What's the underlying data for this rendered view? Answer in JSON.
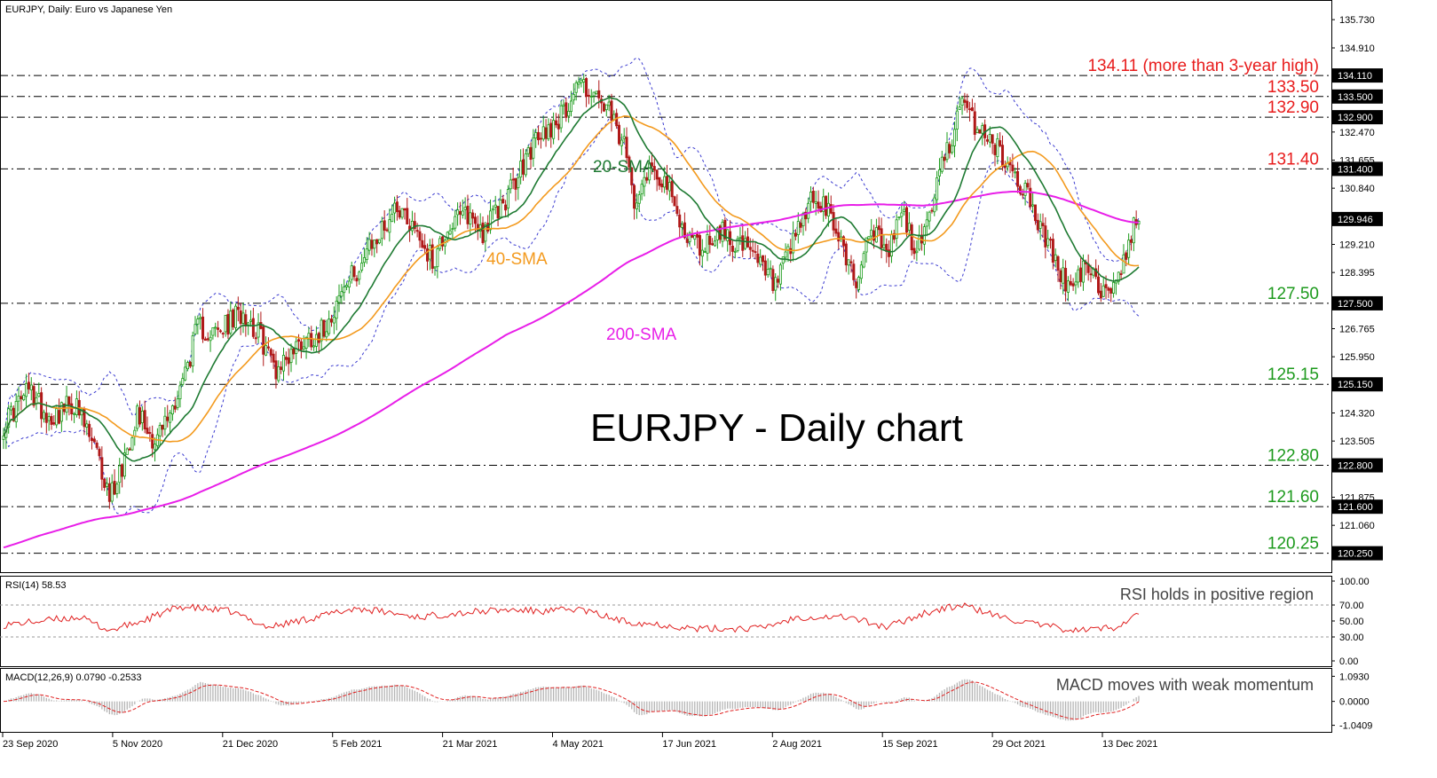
{
  "header": {
    "main_info": "EURJPY, Daily:  Euro vs Japanese Yen",
    "rsi_info": "RSI(14) 58.53",
    "macd_info": "MACD(12,26,9) 0.0790 -0.2533"
  },
  "notes": {
    "big_title": "EURJPY - Daily chart",
    "rsi_note": "RSI holds in positive region",
    "macd_note": "MACD moves with weak momentum"
  },
  "colors": {
    "sma20": "#1e7a32",
    "sma40": "#f39a1e",
    "sma200": "#e81ee8",
    "bollinger": "#3b3bd0",
    "bull": "#1a9b1a",
    "bear": "#b01818",
    "resistance_label": "#e81c1c",
    "support_label": "#1d9a1d",
    "rsi": "#e02020",
    "macd_hist": "#b5b5b5",
    "macd_signal": "#e02020"
  },
  "chart_data": {
    "type": "candlestick",
    "instrument": "EURJPY",
    "timeframe": "Daily",
    "price_axis": {
      "range": [
        119.7,
        136.3
      ],
      "ticks": [
        "135.730",
        "134.910",
        "134.110",
        "133.500",
        "132.900",
        "132.470",
        "131.655",
        "131.400",
        "130.840",
        "129.946",
        "129.210",
        "128.395",
        "127.500",
        "126.765",
        "125.950",
        "125.150",
        "124.320",
        "123.505",
        "122.800",
        "121.875",
        "121.600",
        "121.060",
        "120.250"
      ],
      "current_price": "129.946"
    },
    "x_axis": {
      "date_labels": [
        "23 Sep 2020",
        "5 Nov 2020",
        "21 Dec 2020",
        "5 Feb 2021",
        "21 Mar 2021",
        "4 May 2021",
        "17 Jun 2021",
        "2 Aug 2021",
        "15 Sep 2021",
        "29 Oct 2021",
        "13 Dec 2021"
      ]
    },
    "key_levels": [
      {
        "value": 134.11,
        "tag": "134.110",
        "label": "134.11 (more than 3-year high)",
        "kind": "resistance"
      },
      {
        "value": 133.5,
        "tag": "133.500",
        "label": "133.50",
        "kind": "resistance"
      },
      {
        "value": 132.9,
        "tag": "132.900",
        "label": "132.90",
        "kind": "resistance"
      },
      {
        "value": 131.4,
        "tag": "131.400",
        "label": "131.40",
        "kind": "resistance"
      },
      {
        "value": 127.5,
        "tag": "127.500",
        "label": "127.50",
        "kind": "support"
      },
      {
        "value": 125.15,
        "tag": "125.150",
        "label": "125.15",
        "kind": "support"
      },
      {
        "value": 122.8,
        "tag": "122.800",
        "label": "122.80",
        "kind": "support"
      },
      {
        "value": 121.6,
        "tag": "121.600",
        "label": "121.60",
        "kind": "support"
      },
      {
        "value": 120.25,
        "tag": "120.250",
        "label": "120.25",
        "kind": "support"
      }
    ],
    "close_keypoints": [
      [
        0,
        124.0
      ],
      [
        10,
        125.0
      ],
      [
        18,
        124.2
      ],
      [
        28,
        124.6
      ],
      [
        36,
        123.3
      ],
      [
        42,
        121.9
      ],
      [
        47,
        122.8
      ],
      [
        53,
        124.4
      ],
      [
        60,
        123.5
      ],
      [
        66,
        124.3
      ],
      [
        72,
        125.5
      ],
      [
        77,
        126.8
      ],
      [
        85,
        126.6
      ],
      [
        95,
        127.3
      ],
      [
        102,
        126.5
      ],
      [
        108,
        125.6
      ],
      [
        118,
        126.4
      ],
      [
        126,
        126.7
      ],
      [
        134,
        127.8
      ],
      [
        142,
        128.7
      ],
      [
        150,
        129.6
      ],
      [
        156,
        130.4
      ],
      [
        164,
        129.6
      ],
      [
        170,
        128.7
      ],
      [
        176,
        129.7
      ],
      [
        184,
        130.1
      ],
      [
        190,
        129.6
      ],
      [
        196,
        130.2
      ],
      [
        203,
        131.0
      ],
      [
        209,
        132.0
      ],
      [
        216,
        132.6
      ],
      [
        222,
        133.0
      ],
      [
        228,
        134.0
      ],
      [
        233,
        133.6
      ],
      [
        240,
        133.0
      ],
      [
        246,
        132.0
      ],
      [
        250,
        130.6
      ],
      [
        256,
        131.5
      ],
      [
        262,
        131.1
      ],
      [
        268,
        129.8
      ],
      [
        276,
        129.1
      ],
      [
        284,
        129.6
      ],
      [
        292,
        129.2
      ],
      [
        300,
        128.6
      ],
      [
        306,
        128.0
      ],
      [
        312,
        129.0
      ],
      [
        320,
        130.5
      ],
      [
        326,
        130.2
      ],
      [
        332,
        129.3
      ],
      [
        338,
        128.1
      ],
      [
        344,
        129.8
      ],
      [
        350,
        128.8
      ],
      [
        356,
        130.2
      ],
      [
        362,
        128.9
      ],
      [
        368,
        130.4
      ],
      [
        374,
        132.0
      ],
      [
        380,
        133.2
      ],
      [
        386,
        132.6
      ],
      [
        392,
        132.2
      ],
      [
        398,
        131.5
      ],
      [
        405,
        130.8
      ],
      [
        412,
        129.5
      ],
      [
        418,
        128.6
      ],
      [
        423,
        127.8
      ],
      [
        428,
        128.5
      ],
      [
        434,
        128.0
      ],
      [
        440,
        127.9
      ],
      [
        446,
        129.3
      ],
      [
        450,
        130.0
      ]
    ],
    "indicators": {
      "sma20": {
        "name": "20-SMA"
      },
      "sma40": {
        "name": "40-SMA"
      },
      "sma200": {
        "name": "200-SMA"
      },
      "bollinger": {
        "period": 20,
        "deviations": 2
      }
    },
    "rsi": {
      "period": 14,
      "current": 58.53,
      "axis_ticks": [
        "100.00",
        "70.00",
        "50.00",
        "30.00",
        "0.00"
      ],
      "levels": [
        70,
        30
      ],
      "keypoints": [
        [
          0,
          45
        ],
        [
          30,
          55
        ],
        [
          42,
          38
        ],
        [
          55,
          50
        ],
        [
          70,
          68
        ],
        [
          90,
          62
        ],
        [
          105,
          42
        ],
        [
          140,
          66
        ],
        [
          165,
          55
        ],
        [
          180,
          60
        ],
        [
          200,
          64
        ],
        [
          215,
          62
        ],
        [
          228,
          65
        ],
        [
          245,
          50
        ],
        [
          262,
          45
        ],
        [
          275,
          40
        ],
        [
          300,
          41
        ],
        [
          315,
          55
        ],
        [
          335,
          55
        ],
        [
          350,
          42
        ],
        [
          365,
          60
        ],
        [
          380,
          70
        ],
        [
          395,
          55
        ],
        [
          410,
          45
        ],
        [
          425,
          38
        ],
        [
          440,
          42
        ],
        [
          450,
          58.53
        ]
      ]
    },
    "macd": {
      "fast": 12,
      "slow": 26,
      "signal": 9,
      "main": 0.079,
      "signal_value": -0.2533,
      "axis_ticks": [
        "1.0930",
        "0.0000",
        "-1.0409"
      ],
      "range": [
        -1.25,
        1.3
      ]
    }
  }
}
